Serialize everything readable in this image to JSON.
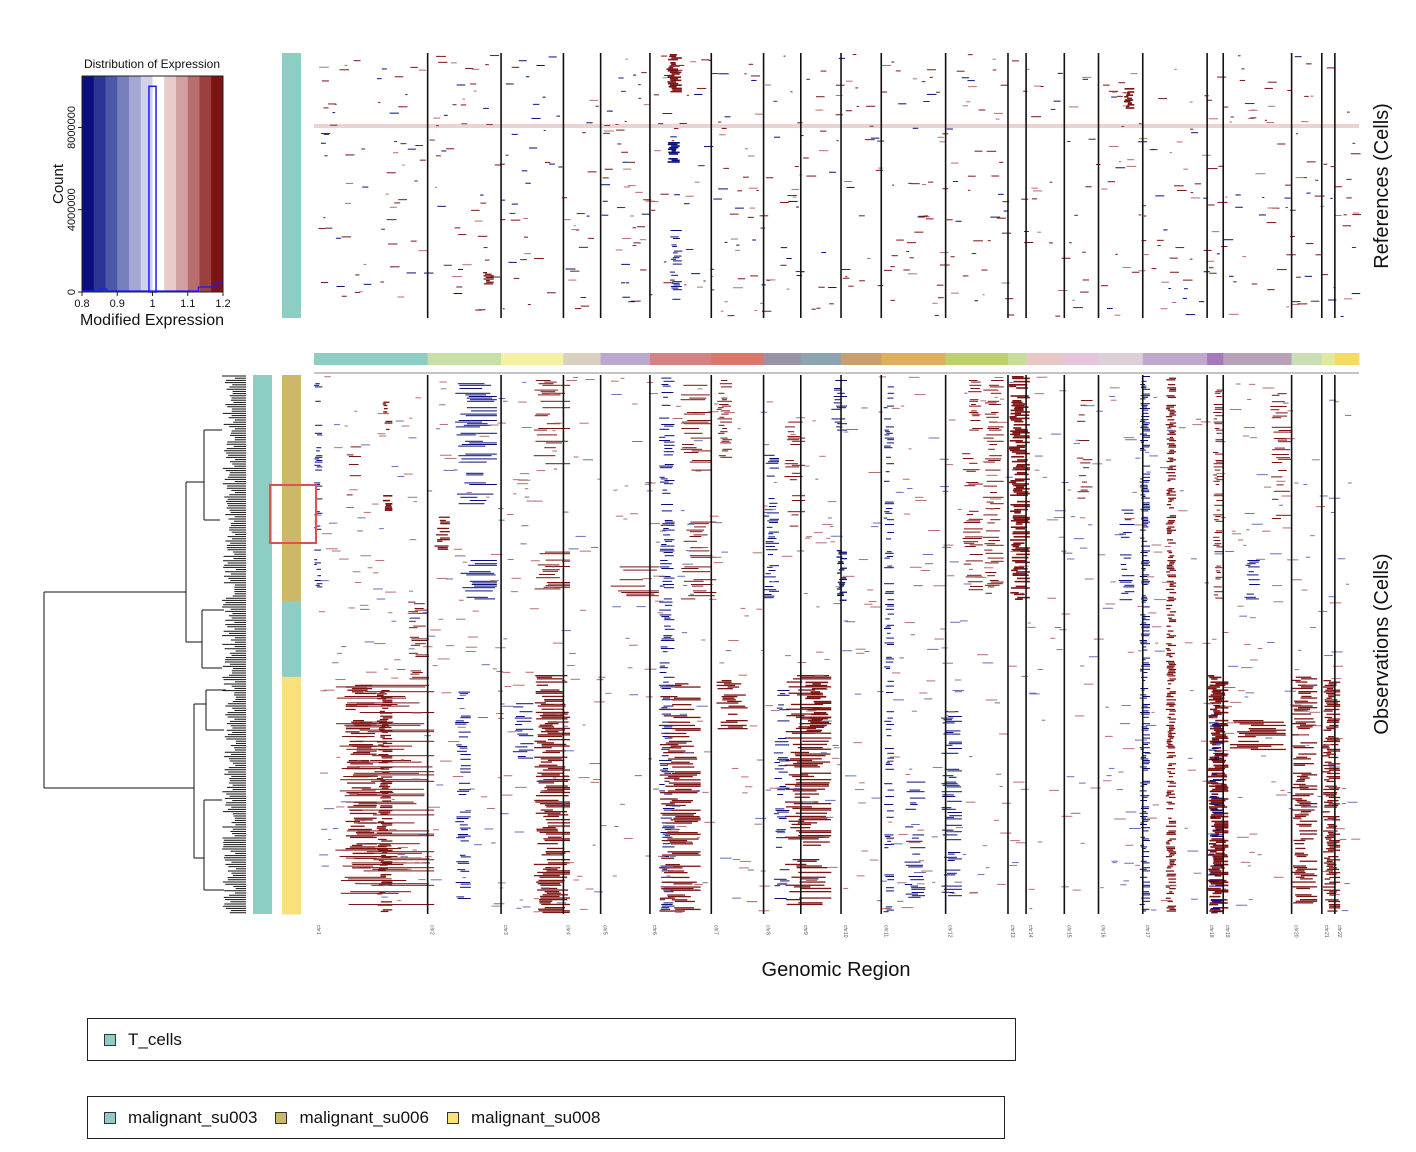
{
  "histogram": {
    "title": "Distribution of Expression",
    "ylabel": "Count",
    "xlabel": "Modified Expression",
    "x_ticks": [
      "0.8",
      "0.9",
      "1",
      "1.1",
      "1.2"
    ],
    "y_ticks": [
      "0",
      "4000000",
      "8000000"
    ],
    "x_range": [
      0.8,
      1.2
    ],
    "y_range": [
      0,
      10500000
    ],
    "peak_bin": {
      "x0": 0.99,
      "x1": 1.01,
      "count": 10000000
    },
    "color_scale": [
      "#0a0f7d",
      "#2a3594",
      "#4c58a8",
      "#7680bd",
      "#a2a8d3",
      "#cfd2e8",
      "#ffffff",
      "#e8cccc",
      "#d2a0a0",
      "#b86e6e",
      "#9c3f3f",
      "#7d1414"
    ]
  },
  "chart_data": {
    "type": "heatmap",
    "xlabel": "Genomic Region",
    "references_label": "References (Cells)",
    "observations_label": "Observations (Cells)",
    "chromosomes": [
      {
        "label": "chr1",
        "size": 113,
        "color": "#8ecdc3"
      },
      {
        "label": "chr2",
        "size": 73,
        "color": "#c8e0a8"
      },
      {
        "label": "chr3",
        "size": 62,
        "color": "#f5f0a6"
      },
      {
        "label": "chr4",
        "size": 37,
        "color": "#d8d0c0"
      },
      {
        "label": "chr5",
        "size": 49,
        "color": "#b9a8cf"
      },
      {
        "label": "chr6",
        "size": 61,
        "color": "#d38383"
      },
      {
        "label": "chr7",
        "size": 52,
        "color": "#d9786a"
      },
      {
        "label": "chr8",
        "size": 37,
        "color": "#9a93a8"
      },
      {
        "label": "chr9",
        "size": 40,
        "color": "#8da4b0"
      },
      {
        "label": "chr10",
        "size": 40,
        "color": "#c8a070"
      },
      {
        "label": "chr11",
        "size": 64,
        "color": "#dcb060"
      },
      {
        "label": "chr12",
        "size": 62,
        "color": "#bcd070"
      },
      {
        "label": "chr13",
        "size": 18,
        "color": "#c8dc9c"
      },
      {
        "label": "chr14",
        "size": 38,
        "color": "#e8c8c4"
      },
      {
        "label": "chr15",
        "size": 34,
        "color": "#e6c4dc"
      },
      {
        "label": "chr16",
        "size": 44,
        "color": "#dcd0d8"
      },
      {
        "label": "chr17",
        "size": 64,
        "color": "#c0a8cc"
      },
      {
        "label": "chr18",
        "size": 16,
        "color": "#a878bc"
      },
      {
        "label": "chr19",
        "size": 68,
        "color": "#b8a0b8"
      },
      {
        "label": "chr20",
        "size": 30,
        "color": "#c8e0b4"
      },
      {
        "label": "chr21",
        "size": 13,
        "color": "#e2e8a4"
      },
      {
        "label": "chr22",
        "size": 24,
        "color": "#f4dc64"
      }
    ],
    "value_range": [
      0.8,
      1.2
    ],
    "observation_groups": [
      {
        "name": "malignant_su006",
        "fraction": 0.42,
        "color": "#cdb86a"
      },
      {
        "name": "malignant_su003",
        "fraction": 0.14,
        "color": "#8ecdc3"
      },
      {
        "name": "malignant_su008",
        "fraction": 0.44,
        "color": "#f8e07a"
      }
    ],
    "reference_groups": [
      {
        "name": "T_cells",
        "color": "#8ecdc3"
      }
    ]
  },
  "legends": {
    "references": [
      {
        "label": "T_cells",
        "color": "#8ecdc3"
      }
    ],
    "observations": [
      {
        "label": "malignant_su003",
        "color": "#8ecdc3"
      },
      {
        "label": "malignant_su006",
        "color": "#cdb86a"
      },
      {
        "label": "malignant_su008",
        "color": "#f8e07a"
      }
    ]
  },
  "highlight_color": "#e05050"
}
